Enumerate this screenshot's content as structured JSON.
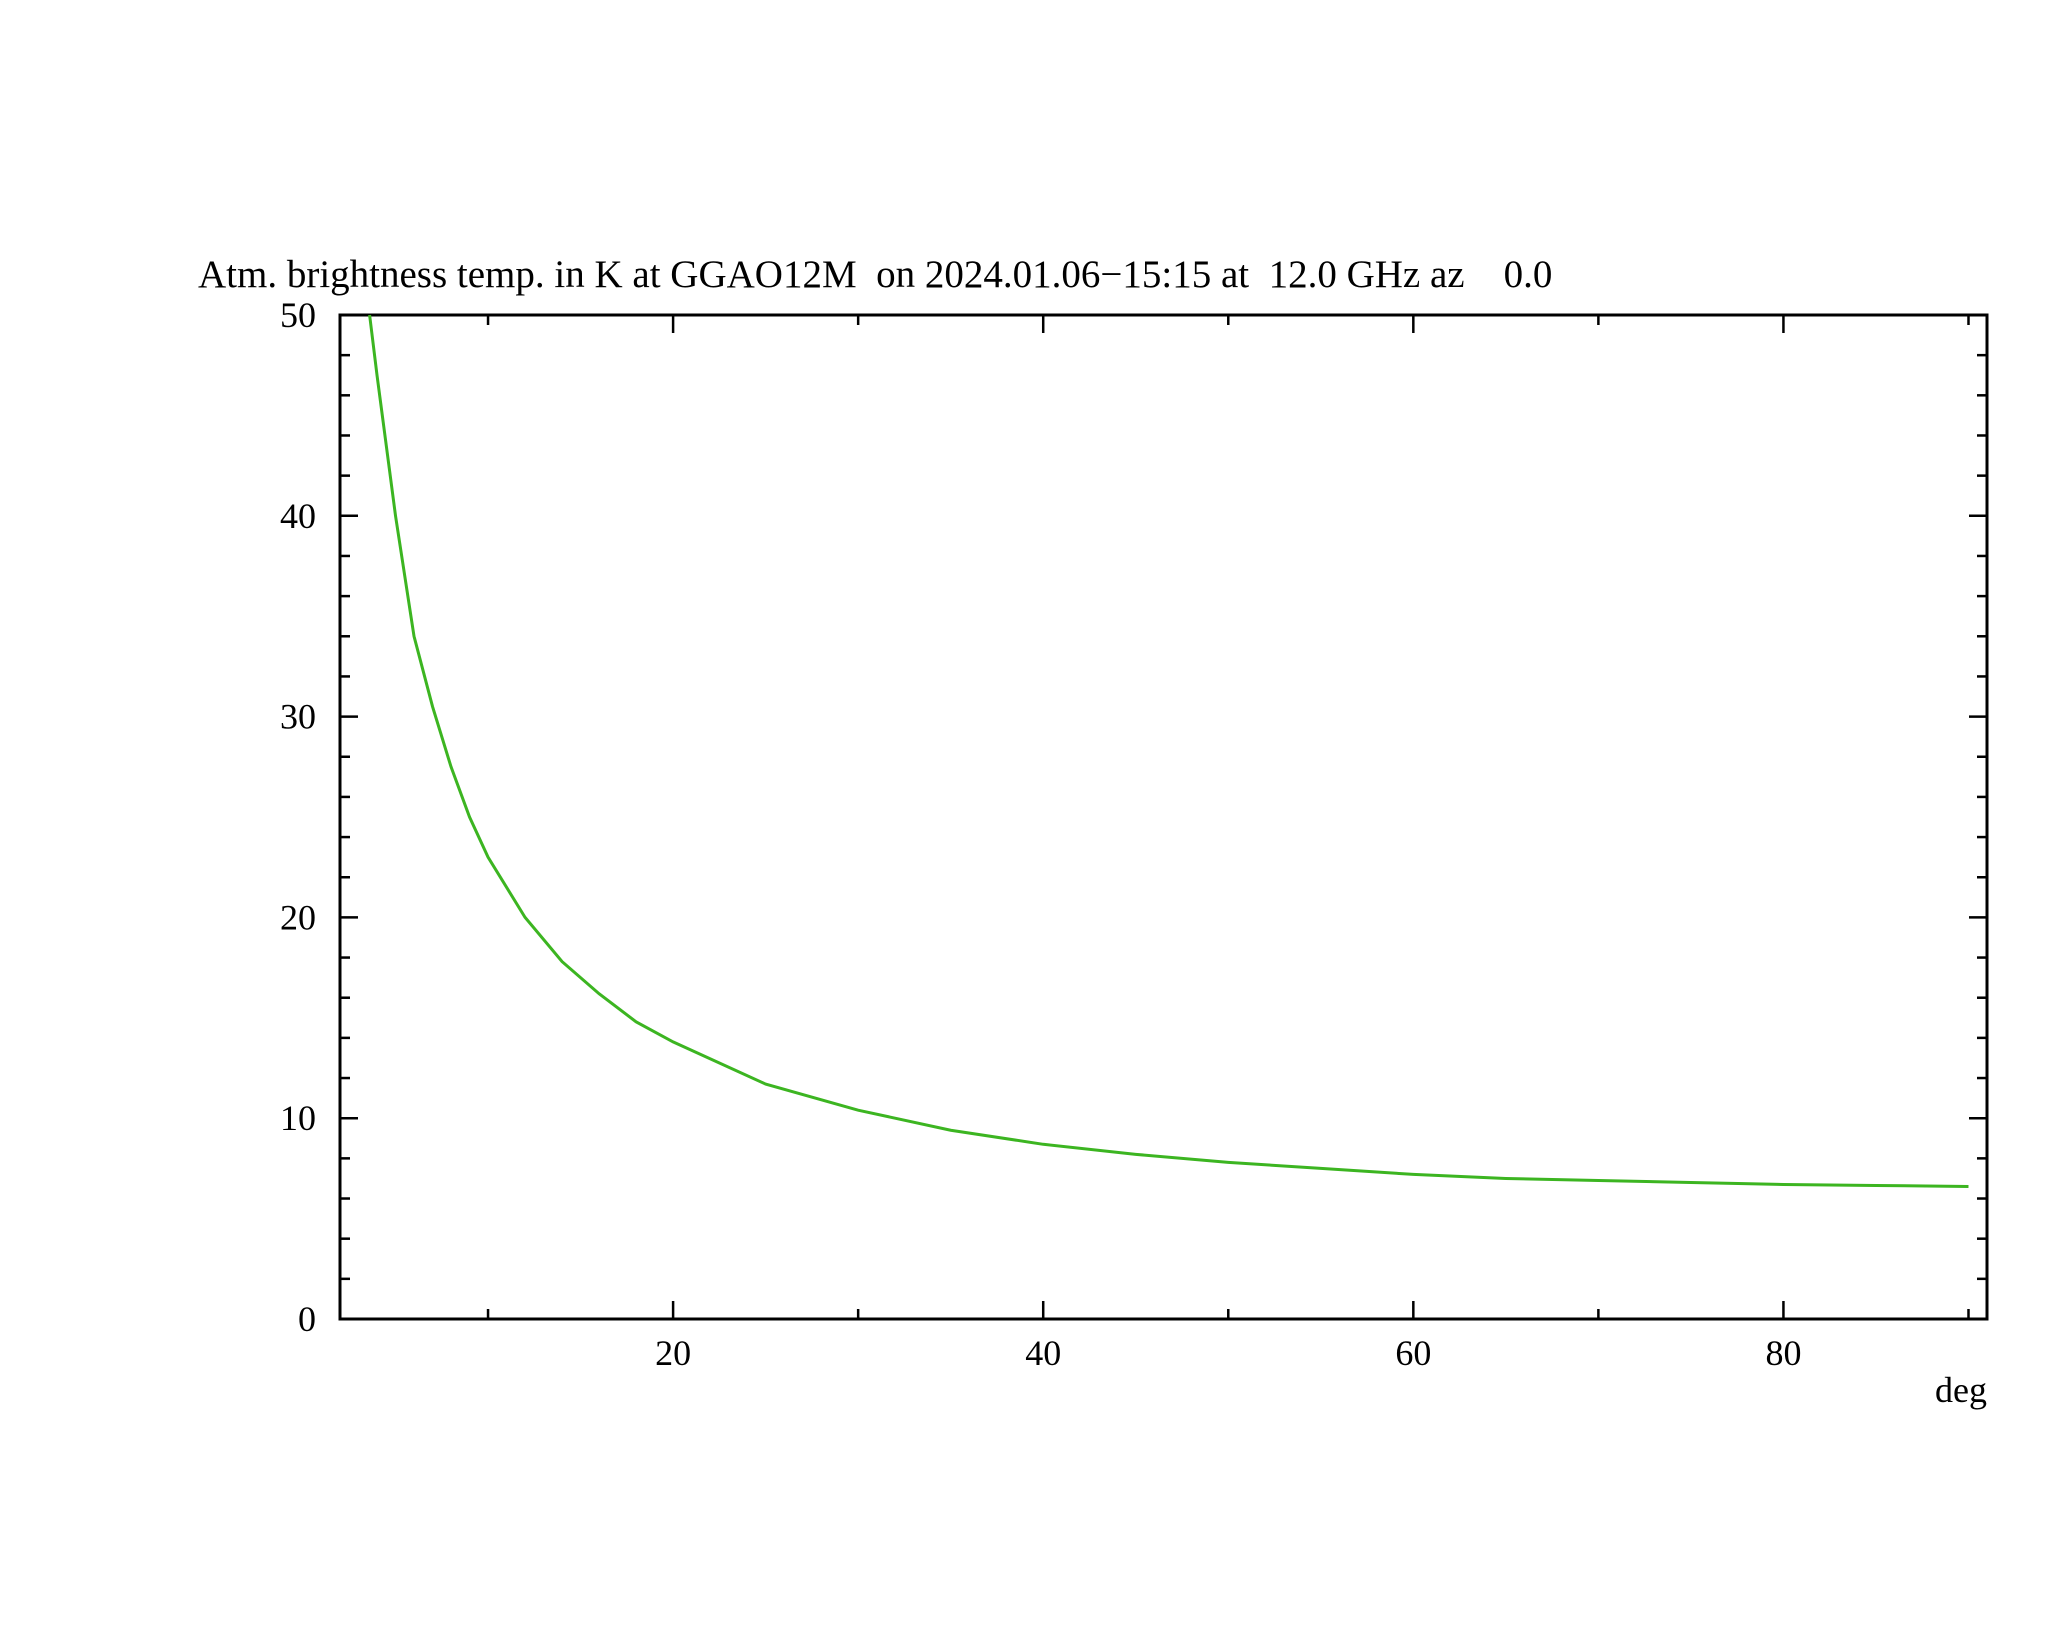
{
  "chart_data": {
    "type": "line",
    "title": "Atm. brightness temp. in K at GGAO12M  on 2024.01.06−15:15 at  12.0 GHz az    0.0",
    "x_label": "deg",
    "x": [
      3.6,
      4,
      5,
      6,
      7,
      8,
      9,
      10,
      12,
      14,
      16,
      18,
      20,
      25,
      30,
      35,
      40,
      45,
      50,
      55,
      60,
      65,
      70,
      75,
      80,
      85,
      90
    ],
    "series": [
      {
        "color": "#3cb521",
        "values": [
          50,
          47,
          40,
          34,
          30.5,
          27.5,
          25,
          23,
          20,
          17.8,
          16.2,
          14.8,
          13.8,
          11.7,
          10.4,
          9.4,
          8.7,
          8.2,
          7.8,
          7.5,
          7.2,
          7.0,
          6.9,
          6.8,
          6.7,
          6.65,
          6.6
        ]
      }
    ],
    "xlim": [
      2,
      91
    ],
    "ylim": [
      0,
      50
    ],
    "xticks": [
      20,
      40,
      60,
      80
    ],
    "xminorticks": [
      10,
      30,
      50,
      70,
      90
    ],
    "yticks": [
      0,
      10,
      20,
      30,
      40,
      50
    ],
    "yminorticks": [
      2,
      4,
      6,
      8,
      12,
      14,
      16,
      18,
      22,
      24,
      26,
      28,
      32,
      34,
      36,
      38,
      42,
      44,
      46,
      48
    ]
  }
}
